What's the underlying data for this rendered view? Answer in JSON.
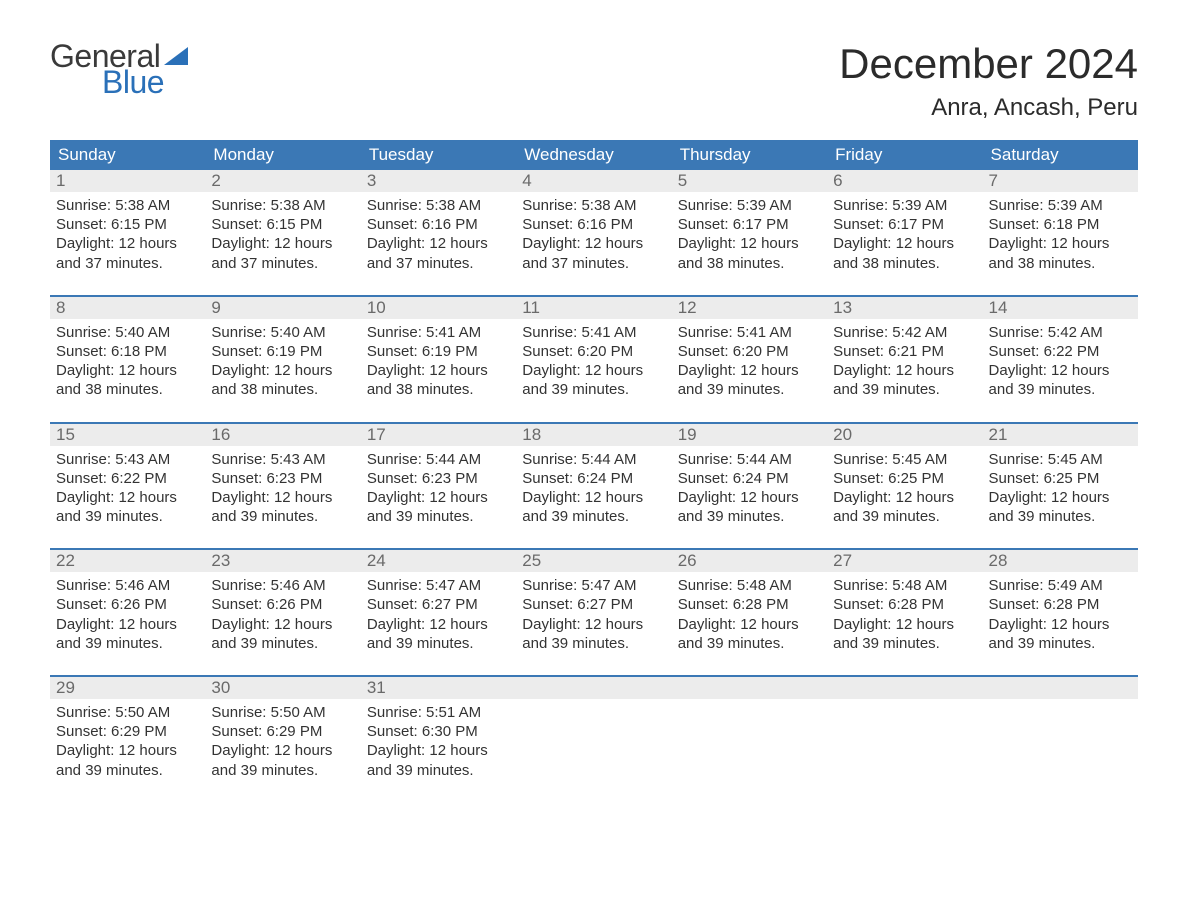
{
  "brand": {
    "word1": "General",
    "word2": "Blue",
    "word1_color": "#3a3a3a",
    "word2_color": "#2a70b8",
    "shape_color": "#2a70b8"
  },
  "title": "December 2024",
  "location": "Anra, Ancash, Peru",
  "colors": {
    "header_bg": "#3b78b5",
    "header_text": "#ffffff",
    "daynum_bg": "#ececec",
    "daynum_text": "#6a6a6a",
    "body_text": "#333333",
    "week_border": "#3b78b5",
    "page_bg": "#ffffff"
  },
  "typography": {
    "title_fontsize": 42,
    "location_fontsize": 24,
    "dayheader_fontsize": 17,
    "daynum_fontsize": 17,
    "content_fontsize": 15
  },
  "day_headers": [
    "Sunday",
    "Monday",
    "Tuesday",
    "Wednesday",
    "Thursday",
    "Friday",
    "Saturday"
  ],
  "labels": {
    "sunrise": "Sunrise:",
    "sunset": "Sunset:",
    "daylight": "Daylight:"
  },
  "weeks": [
    [
      {
        "num": "1",
        "sunrise": "5:38 AM",
        "sunset": "6:15 PM",
        "daylight": "12 hours and 37 minutes."
      },
      {
        "num": "2",
        "sunrise": "5:38 AM",
        "sunset": "6:15 PM",
        "daylight": "12 hours and 37 minutes."
      },
      {
        "num": "3",
        "sunrise": "5:38 AM",
        "sunset": "6:16 PM",
        "daylight": "12 hours and 37 minutes."
      },
      {
        "num": "4",
        "sunrise": "5:38 AM",
        "sunset": "6:16 PM",
        "daylight": "12 hours and 37 minutes."
      },
      {
        "num": "5",
        "sunrise": "5:39 AM",
        "sunset": "6:17 PM",
        "daylight": "12 hours and 38 minutes."
      },
      {
        "num": "6",
        "sunrise": "5:39 AM",
        "sunset": "6:17 PM",
        "daylight": "12 hours and 38 minutes."
      },
      {
        "num": "7",
        "sunrise": "5:39 AM",
        "sunset": "6:18 PM",
        "daylight": "12 hours and 38 minutes."
      }
    ],
    [
      {
        "num": "8",
        "sunrise": "5:40 AM",
        "sunset": "6:18 PM",
        "daylight": "12 hours and 38 minutes."
      },
      {
        "num": "9",
        "sunrise": "5:40 AM",
        "sunset": "6:19 PM",
        "daylight": "12 hours and 38 minutes."
      },
      {
        "num": "10",
        "sunrise": "5:41 AM",
        "sunset": "6:19 PM",
        "daylight": "12 hours and 38 minutes."
      },
      {
        "num": "11",
        "sunrise": "5:41 AM",
        "sunset": "6:20 PM",
        "daylight": "12 hours and 39 minutes."
      },
      {
        "num": "12",
        "sunrise": "5:41 AM",
        "sunset": "6:20 PM",
        "daylight": "12 hours and 39 minutes."
      },
      {
        "num": "13",
        "sunrise": "5:42 AM",
        "sunset": "6:21 PM",
        "daylight": "12 hours and 39 minutes."
      },
      {
        "num": "14",
        "sunrise": "5:42 AM",
        "sunset": "6:22 PM",
        "daylight": "12 hours and 39 minutes."
      }
    ],
    [
      {
        "num": "15",
        "sunrise": "5:43 AM",
        "sunset": "6:22 PM",
        "daylight": "12 hours and 39 minutes."
      },
      {
        "num": "16",
        "sunrise": "5:43 AM",
        "sunset": "6:23 PM",
        "daylight": "12 hours and 39 minutes."
      },
      {
        "num": "17",
        "sunrise": "5:44 AM",
        "sunset": "6:23 PM",
        "daylight": "12 hours and 39 minutes."
      },
      {
        "num": "18",
        "sunrise": "5:44 AM",
        "sunset": "6:24 PM",
        "daylight": "12 hours and 39 minutes."
      },
      {
        "num": "19",
        "sunrise": "5:44 AM",
        "sunset": "6:24 PM",
        "daylight": "12 hours and 39 minutes."
      },
      {
        "num": "20",
        "sunrise": "5:45 AM",
        "sunset": "6:25 PM",
        "daylight": "12 hours and 39 minutes."
      },
      {
        "num": "21",
        "sunrise": "5:45 AM",
        "sunset": "6:25 PM",
        "daylight": "12 hours and 39 minutes."
      }
    ],
    [
      {
        "num": "22",
        "sunrise": "5:46 AM",
        "sunset": "6:26 PM",
        "daylight": "12 hours and 39 minutes."
      },
      {
        "num": "23",
        "sunrise": "5:46 AM",
        "sunset": "6:26 PM",
        "daylight": "12 hours and 39 minutes."
      },
      {
        "num": "24",
        "sunrise": "5:47 AM",
        "sunset": "6:27 PM",
        "daylight": "12 hours and 39 minutes."
      },
      {
        "num": "25",
        "sunrise": "5:47 AM",
        "sunset": "6:27 PM",
        "daylight": "12 hours and 39 minutes."
      },
      {
        "num": "26",
        "sunrise": "5:48 AM",
        "sunset": "6:28 PM",
        "daylight": "12 hours and 39 minutes."
      },
      {
        "num": "27",
        "sunrise": "5:48 AM",
        "sunset": "6:28 PM",
        "daylight": "12 hours and 39 minutes."
      },
      {
        "num": "28",
        "sunrise": "5:49 AM",
        "sunset": "6:28 PM",
        "daylight": "12 hours and 39 minutes."
      }
    ],
    [
      {
        "num": "29",
        "sunrise": "5:50 AM",
        "sunset": "6:29 PM",
        "daylight": "12 hours and 39 minutes."
      },
      {
        "num": "30",
        "sunrise": "5:50 AM",
        "sunset": "6:29 PM",
        "daylight": "12 hours and 39 minutes."
      },
      {
        "num": "31",
        "sunrise": "5:51 AM",
        "sunset": "6:30 PM",
        "daylight": "12 hours and 39 minutes."
      },
      {
        "empty": true
      },
      {
        "empty": true
      },
      {
        "empty": true
      },
      {
        "empty": true
      }
    ]
  ]
}
